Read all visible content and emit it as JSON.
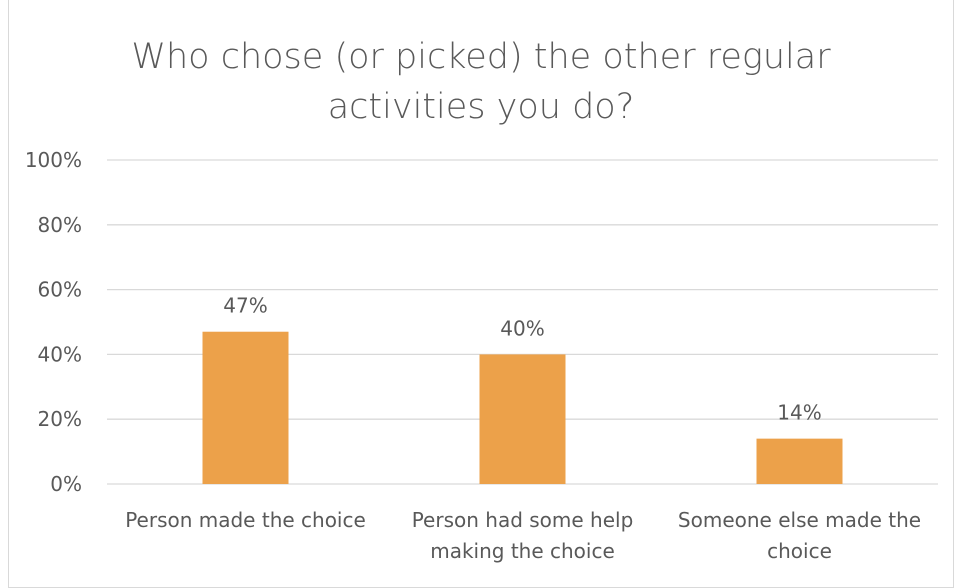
{
  "chart_data": {
    "type": "bar",
    "title": "Who chose (or picked) the other regular\nactivities you do?",
    "categories": [
      "Person made the choice",
      "Person had some help making the choice",
      "Someone else made the choice"
    ],
    "category_lines": [
      [
        "Person made the choice"
      ],
      [
        "Person had some help",
        "making the choice"
      ],
      [
        "Someone else made the",
        "choice"
      ]
    ],
    "values": [
      47,
      40,
      14
    ],
    "data_labels": [
      "47%",
      "40%",
      "14%"
    ],
    "ylim": [
      0,
      100
    ],
    "yticks": [
      0,
      20,
      40,
      60,
      80,
      100
    ],
    "ytick_labels": [
      "0%",
      "20%",
      "40%",
      "60%",
      "80%",
      "100%"
    ],
    "xlabel": "",
    "ylabel": "",
    "grid": true,
    "legend": "none",
    "bar_color": "#ECA14A",
    "grid_color": "#D9D9D9",
    "text_color": "#595959"
  }
}
